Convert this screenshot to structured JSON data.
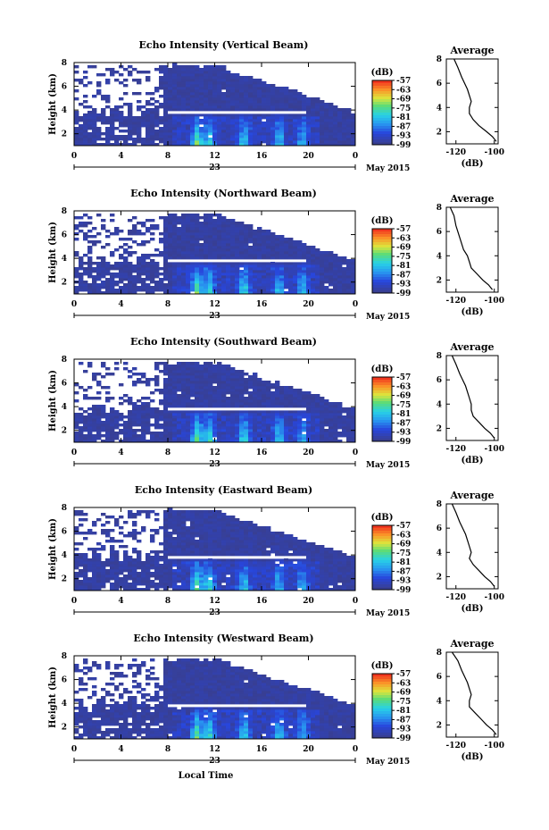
{
  "figure": {
    "xlabel": "Local Time",
    "date_label": "May 2015",
    "day_label": "23"
  },
  "chart_data": [
    {
      "type": "heatmap",
      "title": "Echo Intensity (Vertical Beam)",
      "ylabel": "Height (km)",
      "x_ticks": [
        "0",
        "4",
        "8",
        "12",
        "16",
        "20",
        "0"
      ],
      "y_ticks": [
        "2",
        "4",
        "6",
        "8"
      ],
      "xlim": [
        0,
        24
      ],
      "ylim": [
        1,
        8
      ],
      "colorbar": {
        "unit": "(dB)",
        "ticks": [
          "-57",
          "-63",
          "-69",
          "-75",
          "-81",
          "-87",
          "-93",
          "-99"
        ],
        "range": [
          -99,
          -57
        ]
      },
      "profile": {
        "title": "Average",
        "xlabel": "(dB)",
        "x_ticks": [
          "-120",
          "-100"
        ],
        "xlim": [
          -125,
          -98
        ],
        "y_ticks": [
          "2",
          "4",
          "6",
          "8"
        ],
        "ylim": [
          1,
          8
        ],
        "x": [
          -99,
          -101,
          -104,
          -108,
          -111,
          -113,
          -113,
          -112,
          -114,
          -117,
          -119,
          -121
        ],
        "y": [
          1.2,
          1.6,
          2.0,
          2.5,
          3.0,
          3.5,
          4.0,
          4.5,
          5.5,
          6.5,
          7.3,
          8.0
        ]
      }
    },
    {
      "type": "heatmap",
      "title": "Echo Intensity (Northward Beam)",
      "ylabel": "Height (km)",
      "x_ticks": [
        "0",
        "4",
        "8",
        "12",
        "16",
        "20",
        "0"
      ],
      "y_ticks": [
        "2",
        "4",
        "6",
        "8"
      ],
      "xlim": [
        0,
        24
      ],
      "ylim": [
        1,
        8
      ],
      "colorbar": {
        "unit": "(dB)",
        "ticks": [
          "-57",
          "-63",
          "-69",
          "-75",
          "-81",
          "-87",
          "-93",
          "-99"
        ],
        "range": [
          -99,
          -57
        ]
      },
      "profile": {
        "title": "Average",
        "xlabel": "(dB)",
        "x_ticks": [
          "-120",
          "-100"
        ],
        "xlim": [
          -125,
          -98
        ],
        "y_ticks": [
          "2",
          "4",
          "6",
          "8"
        ],
        "ylim": [
          1,
          8
        ],
        "x": [
          -101,
          -103,
          -106,
          -109,
          -112,
          -113,
          -114,
          -116,
          -118,
          -120,
          -121,
          -123
        ],
        "y": [
          1.2,
          1.6,
          2.0,
          2.5,
          3.0,
          3.5,
          4.0,
          4.5,
          5.5,
          6.5,
          7.3,
          8.0
        ]
      }
    },
    {
      "type": "heatmap",
      "title": "Echo Intensity (Southward Beam)",
      "ylabel": "Height (km)",
      "x_ticks": [
        "0",
        "4",
        "8",
        "12",
        "16",
        "20",
        "0"
      ],
      "y_ticks": [
        "2",
        "4",
        "6",
        "8"
      ],
      "xlim": [
        0,
        24
      ],
      "ylim": [
        1,
        8
      ],
      "colorbar": {
        "unit": "(dB)",
        "ticks": [
          "-57",
          "-63",
          "-69",
          "-75",
          "-81",
          "-87",
          "-93",
          "-99"
        ],
        "range": [
          -99,
          -57
        ]
      },
      "profile": {
        "title": "Average",
        "xlabel": "(dB)",
        "x_ticks": [
          "-120",
          "-100"
        ],
        "xlim": [
          -125,
          -98
        ],
        "y_ticks": [
          "2",
          "4",
          "6",
          "8"
        ],
        "ylim": [
          1,
          8
        ],
        "x": [
          -100,
          -102,
          -105,
          -108,
          -111,
          -112,
          -112,
          -113,
          -115,
          -118,
          -120,
          -122
        ],
        "y": [
          1.2,
          1.6,
          2.0,
          2.5,
          3.0,
          3.5,
          4.0,
          4.5,
          5.5,
          6.5,
          7.3,
          8.0
        ]
      }
    },
    {
      "type": "heatmap",
      "title": "Echo Intensity (Eastward Beam)",
      "ylabel": "Height (km)",
      "x_ticks": [
        "0",
        "4",
        "8",
        "12",
        "16",
        "20",
        "0"
      ],
      "y_ticks": [
        "2",
        "4",
        "6",
        "8"
      ],
      "xlim": [
        0,
        24
      ],
      "ylim": [
        1,
        8
      ],
      "colorbar": {
        "unit": "(dB)",
        "ticks": [
          "-57",
          "-63",
          "-69",
          "-75",
          "-81",
          "-87",
          "-93",
          "-99"
        ],
        "range": [
          -99,
          -57
        ]
      },
      "profile": {
        "title": "Average",
        "xlabel": "(dB)",
        "x_ticks": [
          "-120",
          "-100"
        ],
        "xlim": [
          -125,
          -98
        ],
        "y_ticks": [
          "2",
          "4",
          "6",
          "8"
        ],
        "ylim": [
          1,
          8
        ],
        "x": [
          -100,
          -102,
          -105,
          -108,
          -111,
          -113,
          -112,
          -113,
          -115,
          -118,
          -120,
          -122
        ],
        "y": [
          1.2,
          1.6,
          2.0,
          2.5,
          3.0,
          3.5,
          4.0,
          4.5,
          5.5,
          6.5,
          7.3,
          8.0
        ]
      }
    },
    {
      "type": "heatmap",
      "title": "Echo Intensity (Westward Beam)",
      "ylabel": "Height (km)",
      "x_ticks": [
        "0",
        "4",
        "8",
        "12",
        "16",
        "20",
        "0"
      ],
      "y_ticks": [
        "2",
        "4",
        "6",
        "8"
      ],
      "xlim": [
        0,
        24
      ],
      "ylim": [
        1,
        8
      ],
      "colorbar": {
        "unit": "(dB)",
        "ticks": [
          "-57",
          "-63",
          "-69",
          "-75",
          "-81",
          "-87",
          "-93",
          "-99"
        ],
        "range": [
          -99,
          -57
        ]
      },
      "profile": {
        "title": "Average",
        "xlabel": "(dB)",
        "x_ticks": [
          "-120",
          "-100"
        ],
        "xlim": [
          -125,
          -98
        ],
        "y_ticks": [
          "2",
          "4",
          "6",
          "8"
        ],
        "ylim": [
          1,
          8
        ],
        "x": [
          -99,
          -101,
          -104,
          -107,
          -110,
          -113,
          -113,
          -112,
          -114,
          -117,
          -119,
          -122
        ],
        "y": [
          1.2,
          1.6,
          2.0,
          2.5,
          3.0,
          3.5,
          4.0,
          4.5,
          5.5,
          6.5,
          7.3,
          8.0
        ]
      }
    }
  ]
}
